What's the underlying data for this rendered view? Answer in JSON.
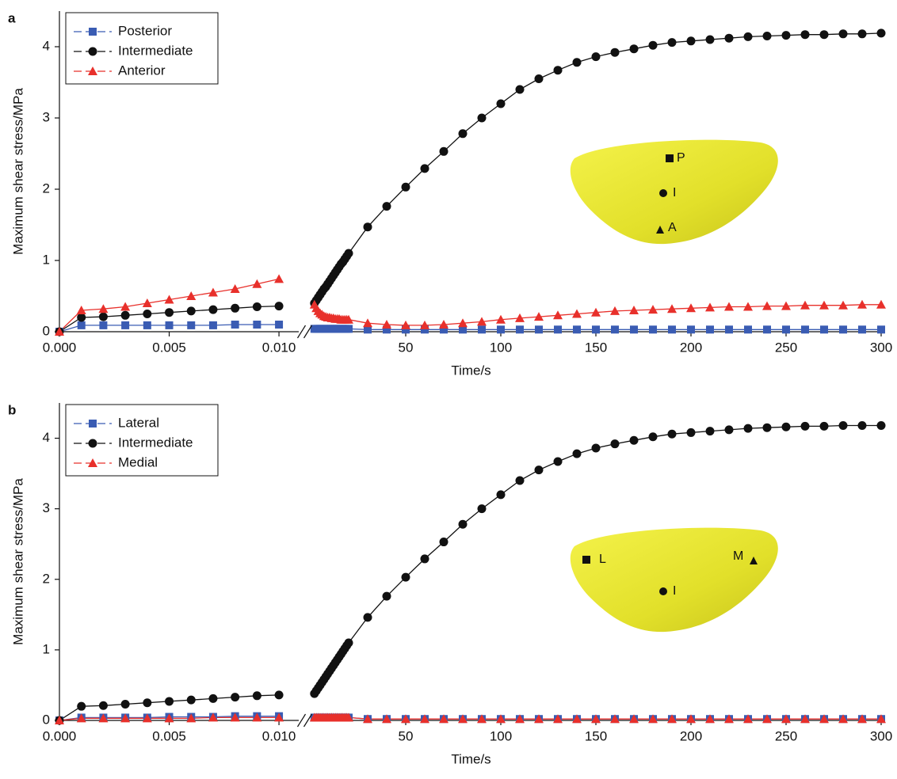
{
  "chart_data": [
    {
      "type": "line",
      "panel": "a",
      "xlabel": "Time/s",
      "ylabel": "Maximum shear stress/MPa",
      "ylim": [
        0,
        4.5
      ],
      "yticks": [
        0,
        1,
        2,
        3,
        4
      ],
      "segments": [
        {
          "xlim": [
            0,
            0.0109
          ],
          "xticks": [
            {
              "value": 0,
              "label": "0.000"
            },
            {
              "value": 0.005,
              "label": "0.005"
            },
            {
              "value": 0.01,
              "label": "0.010"
            }
          ],
          "x": [
            0,
            0.001,
            0.002,
            0.003,
            0.004,
            0.005,
            0.006,
            0.007,
            0.008,
            0.009,
            0.01
          ]
        },
        {
          "xlim": [
            0,
            300
          ],
          "xticks": [
            50,
            100,
            150,
            200,
            250,
            300
          ],
          "x": [
            2,
            3,
            4,
            5,
            6,
            7,
            8,
            9,
            10,
            11,
            12,
            13,
            14,
            15,
            16,
            17,
            18,
            19,
            20,
            30,
            40,
            50,
            60,
            70,
            80,
            90,
            100,
            110,
            120,
            130,
            140,
            150,
            160,
            170,
            180,
            190,
            200,
            210,
            220,
            230,
            240,
            250,
            260,
            270,
            280,
            290,
            300
          ]
        }
      ],
      "series": [
        {
          "name": "Posterior",
          "color": "#3a5cb3",
          "marker": "square",
          "values": [
            [
              0,
              0.09,
              0.09,
              0.09,
              0.09,
              0.09,
              0.09,
              0.09,
              0.1,
              0.1,
              0.1
            ],
            [
              0.04,
              0.04,
              0.04,
              0.04,
              0.04,
              0.04,
              0.04,
              0.04,
              0.04,
              0.04,
              0.04,
              0.04,
              0.04,
              0.04,
              0.04,
              0.04,
              0.04,
              0.04,
              0.04,
              0.03,
              0.03,
              0.03,
              0.03,
              0.03,
              0.03,
              0.03,
              0.03,
              0.03,
              0.03,
              0.03,
              0.03,
              0.03,
              0.03,
              0.03,
              0.03,
              0.03,
              0.03,
              0.03,
              0.03,
              0.03,
              0.03,
              0.03,
              0.03,
              0.03,
              0.03,
              0.03,
              0.03
            ]
          ]
        },
        {
          "name": "Intermediate",
          "color": "#111111",
          "marker": "circle",
          "values": [
            [
              0,
              0.2,
              0.21,
              0.23,
              0.25,
              0.27,
              0.29,
              0.31,
              0.33,
              0.35,
              0.36
            ],
            [
              0.4,
              0.44,
              0.48,
              0.52,
              0.56,
              0.6,
              0.63,
              0.67,
              0.71,
              0.75,
              0.79,
              0.83,
              0.87,
              0.91,
              0.95,
              0.98,
              1.02,
              1.06,
              1.1,
              1.47,
              1.76,
              2.03,
              2.29,
              2.53,
              2.78,
              3.0,
              3.2,
              3.4,
              3.55,
              3.67,
              3.78,
              3.86,
              3.92,
              3.97,
              4.02,
              4.06,
              4.08,
              4.1,
              4.12,
              4.14,
              4.15,
              4.16,
              4.17,
              4.17,
              4.18,
              4.18,
              4.19
            ]
          ]
        },
        {
          "name": "Anterior",
          "color": "#e8302b",
          "marker": "triangle",
          "values": [
            [
              0,
              0.3,
              0.32,
              0.35,
              0.4,
              0.45,
              0.5,
              0.55,
              0.6,
              0.67,
              0.74
            ],
            [
              0.38,
              0.33,
              0.29,
              0.26,
              0.24,
              0.22,
              0.21,
              0.2,
              0.2,
              0.19,
              0.19,
              0.18,
              0.18,
              0.18,
              0.17,
              0.17,
              0.17,
              0.17,
              0.17,
              0.12,
              0.1,
              0.09,
              0.09,
              0.1,
              0.12,
              0.14,
              0.17,
              0.19,
              0.21,
              0.23,
              0.25,
              0.27,
              0.29,
              0.3,
              0.31,
              0.32,
              0.33,
              0.34,
              0.35,
              0.35,
              0.36,
              0.36,
              0.37,
              0.37,
              0.37,
              0.38,
              0.38
            ]
          ]
        }
      ],
      "inset_labels": [
        "P",
        "I",
        "A"
      ]
    },
    {
      "type": "line",
      "panel": "b",
      "xlabel": "Time/s",
      "ylabel": "Maximum shear stress/MPa",
      "ylim": [
        0,
        4.5
      ],
      "yticks": [
        0,
        1,
        2,
        3,
        4
      ],
      "segments": [
        {
          "xlim": [
            0,
            0.0109
          ],
          "xticks": [
            {
              "value": 0,
              "label": "0.000"
            },
            {
              "value": 0.005,
              "label": "0.005"
            },
            {
              "value": 0.01,
              "label": "0.010"
            }
          ],
          "x": [
            0,
            0.001,
            0.002,
            0.003,
            0.004,
            0.005,
            0.006,
            0.007,
            0.008,
            0.009,
            0.01
          ]
        },
        {
          "xlim": [
            0,
            300
          ],
          "xticks": [
            50,
            100,
            150,
            200,
            250,
            300
          ],
          "x": [
            2,
            3,
            4,
            5,
            6,
            7,
            8,
            9,
            10,
            11,
            12,
            13,
            14,
            15,
            16,
            17,
            18,
            19,
            20,
            30,
            40,
            50,
            60,
            70,
            80,
            90,
            100,
            110,
            120,
            130,
            140,
            150,
            160,
            170,
            180,
            190,
            200,
            210,
            220,
            230,
            240,
            250,
            260,
            270,
            280,
            290,
            300
          ]
        }
      ],
      "series": [
        {
          "name": "Lateral",
          "color": "#3a5cb3",
          "marker": "square",
          "values": [
            [
              0,
              0.04,
              0.04,
              0.04,
              0.04,
              0.05,
              0.05,
              0.05,
              0.06,
              0.06,
              0.06
            ],
            [
              0.04,
              0.04,
              0.04,
              0.04,
              0.04,
              0.04,
              0.04,
              0.04,
              0.04,
              0.04,
              0.04,
              0.04,
              0.04,
              0.04,
              0.04,
              0.04,
              0.04,
              0.04,
              0.04,
              0.02,
              0.02,
              0.02,
              0.02,
              0.02,
              0.02,
              0.02,
              0.02,
              0.02,
              0.02,
              0.02,
              0.02,
              0.02,
              0.02,
              0.02,
              0.02,
              0.02,
              0.02,
              0.02,
              0.02,
              0.02,
              0.02,
              0.02,
              0.02,
              0.02,
              0.02,
              0.02,
              0.02
            ]
          ]
        },
        {
          "name": "Intermediate",
          "color": "#111111",
          "marker": "circle",
          "values": [
            [
              0,
              0.2,
              0.21,
              0.23,
              0.25,
              0.27,
              0.29,
              0.31,
              0.33,
              0.35,
              0.36
            ],
            [
              0.38,
              0.42,
              0.46,
              0.5,
              0.54,
              0.58,
              0.62,
              0.66,
              0.7,
              0.74,
              0.78,
              0.82,
              0.86,
              0.9,
              0.94,
              0.98,
              1.02,
              1.06,
              1.1,
              1.46,
              1.76,
              2.03,
              2.29,
              2.53,
              2.78,
              3.0,
              3.2,
              3.4,
              3.55,
              3.67,
              3.78,
              3.86,
              3.92,
              3.97,
              4.02,
              4.06,
              4.08,
              4.1,
              4.12,
              4.14,
              4.15,
              4.16,
              4.17,
              4.17,
              4.18,
              4.18,
              4.18
            ]
          ]
        },
        {
          "name": "Medial",
          "color": "#e8302b",
          "marker": "triangle",
          "values": [
            [
              0,
              0.03,
              0.03,
              0.03,
              0.03,
              0.03,
              0.03,
              0.04,
              0.04,
              0.04,
              0.04
            ],
            [
              0.04,
              0.04,
              0.04,
              0.04,
              0.04,
              0.04,
              0.04,
              0.04,
              0.04,
              0.04,
              0.04,
              0.04,
              0.04,
              0.04,
              0.04,
              0.04,
              0.04,
              0.04,
              0.04,
              0.02,
              0.02,
              0.02,
              0.02,
              0.02,
              0.02,
              0.02,
              0.02,
              0.02,
              0.02,
              0.02,
              0.02,
              0.02,
              0.02,
              0.02,
              0.02,
              0.02,
              0.02,
              0.02,
              0.02,
              0.02,
              0.02,
              0.02,
              0.02,
              0.02,
              0.02,
              0.02,
              0.02
            ]
          ]
        }
      ],
      "inset_labels": [
        "L",
        "I",
        "M"
      ]
    }
  ]
}
